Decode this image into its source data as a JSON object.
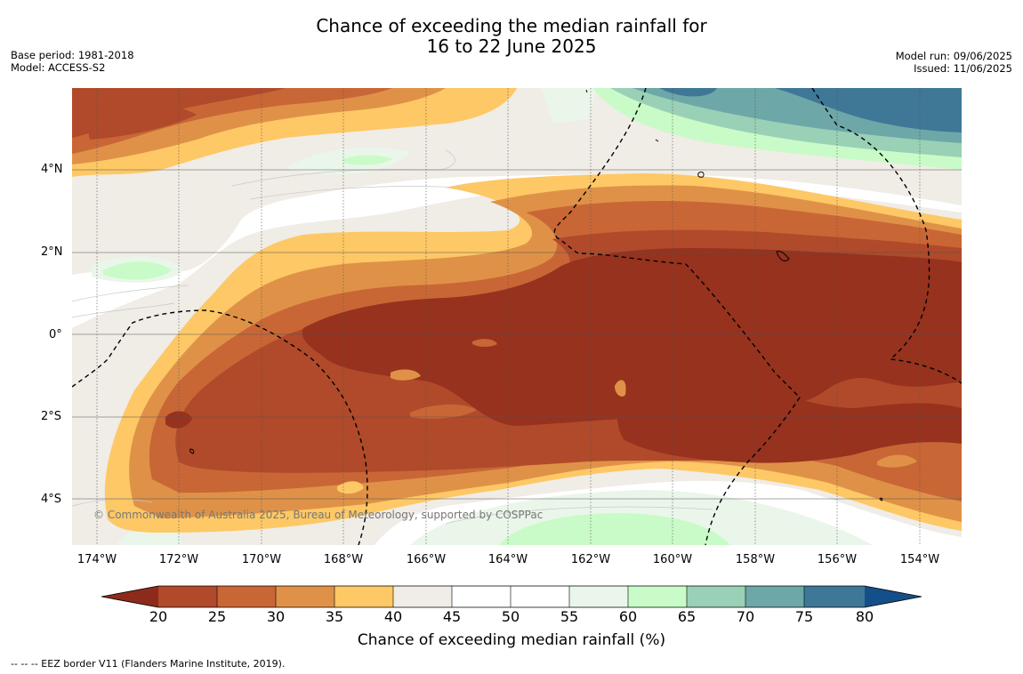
{
  "header": {
    "title_line1": "Chance of exceeding the median rainfall for",
    "title_line2": "16 to 22 June 2025",
    "base_period": "Base period: 1981-2018",
    "model": "Model: ACCESS-S2",
    "model_run": "Model run: 09/06/2025",
    "issued": "Issued: 11/06/2025"
  },
  "map": {
    "copyright": "© Commonwealth of Australia 2025, Bureau of Meteorology, supported by COSPPac",
    "lat_labels": [
      "4°N",
      "2°N",
      "0°",
      "2°S",
      "4°S"
    ],
    "lon_labels": [
      "174°W",
      "172°W",
      "170°W",
      "168°W",
      "166°W",
      "164°W",
      "162°W",
      "160°W",
      "158°W",
      "156°W",
      "154°W"
    ],
    "lat_range": [
      -5.1,
      6.0
    ],
    "lon_range": [
      -174.6,
      -153.0
    ],
    "colors": {
      "lt20": "#8c2a1b",
      "c20_25": "#b04a2a",
      "c25_30": "#c96636",
      "c30_35": "#df9247",
      "c35_40": "#fdc865",
      "c40_45": "#f0ece6",
      "c45_55": "#ffffff",
      "c55_60": "#eaf6ea",
      "c60_65": "#c8fbc8",
      "c65_70": "#9ad0b6",
      "c70_75": "#6da7a8",
      "c75_80": "#3f7797",
      "gt80": "#154f8a"
    }
  },
  "colorbar": {
    "ticks": [
      "20",
      "25",
      "30",
      "35",
      "40",
      "45",
      "50",
      "55",
      "60",
      "65",
      "70",
      "75",
      "80"
    ],
    "label": "Chance of exceeding median rainfall (%)"
  },
  "footer": {
    "eez": "--  --  -- EEZ border V11 (Flanders Marine Institute, 2019)."
  }
}
